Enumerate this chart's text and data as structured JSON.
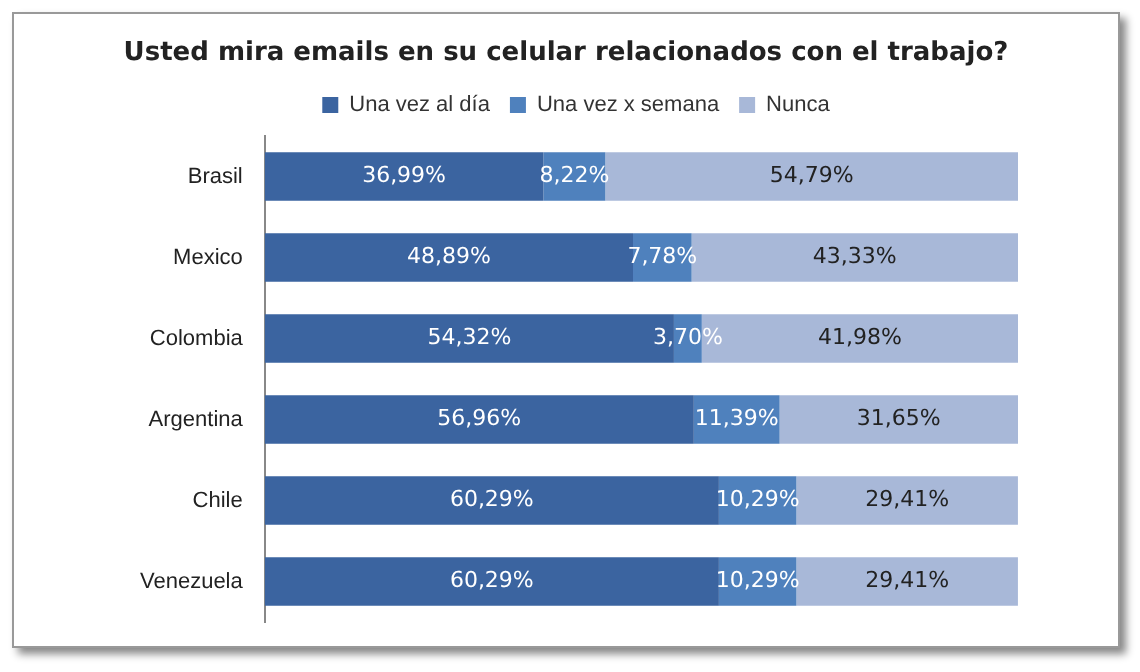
{
  "chart_data": {
    "type": "bar",
    "orientation": "horizontal",
    "stacked": true,
    "title": "Usted mira emails en su celular relacionados con el trabajo?",
    "categories": [
      "Brasil",
      "Mexico",
      "Colombia",
      "Argentina",
      "Chile",
      "Venezuela"
    ],
    "series": [
      {
        "name": "Una vez al día",
        "color": "#3b64a0",
        "values": [
          36.99,
          48.89,
          54.32,
          56.96,
          60.29,
          60.29
        ],
        "value_labels": [
          "36,99%",
          "48,89%",
          "54,32%",
          "56,96%",
          "60,29%",
          "60,29%"
        ]
      },
      {
        "name": "Una vez x semana",
        "color": "#4f81bd",
        "values": [
          8.22,
          7.78,
          3.7,
          11.39,
          10.29,
          10.29
        ],
        "value_labels": [
          "8,22%",
          "7,78%",
          "3,70%",
          "11,39%",
          "10,29%",
          "10,29%"
        ]
      },
      {
        "name": "Nunca",
        "color": "#a8b8d8",
        "values": [
          54.79,
          43.33,
          41.98,
          31.65,
          29.41,
          29.41
        ],
        "value_labels": [
          "54,79%",
          "43,33%",
          "41,98%",
          "31,65%",
          "29,41%",
          "29,41%"
        ]
      }
    ],
    "legend": "top",
    "tick_labels": "y",
    "grid": false
  }
}
